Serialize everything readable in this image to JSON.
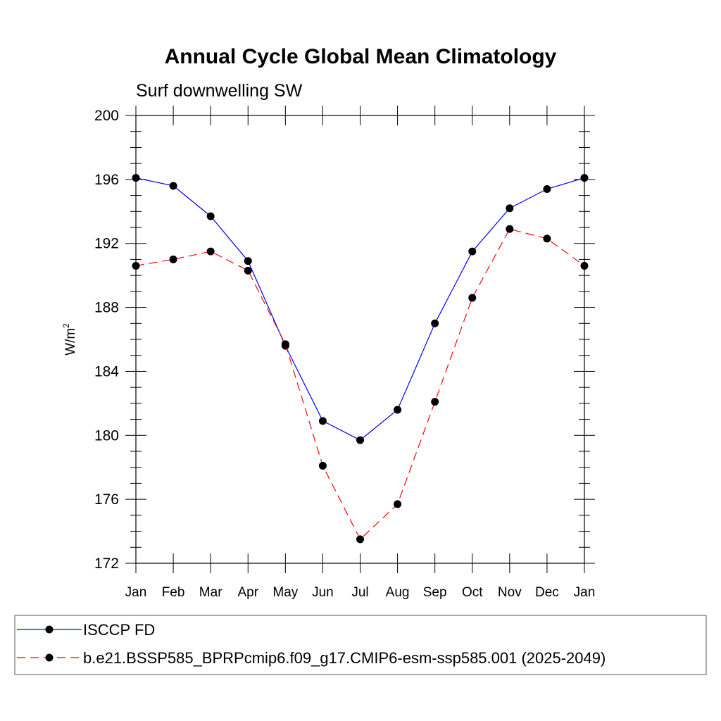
{
  "chart_data": {
    "type": "line",
    "title": "Annual Cycle Global Mean Climatology",
    "subtitle": "Surf downwelling SW",
    "ylabel": "W/m",
    "ylabel_superscript": "2",
    "ylim": [
      172,
      200
    ],
    "yticks": [
      172,
      176,
      180,
      184,
      188,
      192,
      196,
      200
    ],
    "categories": [
      "Jan",
      "Feb",
      "Mar",
      "Apr",
      "May",
      "Jun",
      "Jul",
      "Aug",
      "Sep",
      "Oct",
      "Nov",
      "Dec",
      "Jan"
    ],
    "series": [
      {
        "name": "ISCCP FD",
        "color": "#0000ff",
        "dash": "solid",
        "values": [
          196.1,
          195.6,
          193.7,
          190.9,
          185.6,
          180.9,
          179.7,
          181.6,
          187.0,
          191.5,
          194.2,
          195.4,
          196.1
        ]
      },
      {
        "name": "b.e21.BSSP585_BPRPcmip6.f09_g17.CMIP6-esm-ssp585.001 (2025-2049)",
        "color": "#ff0000",
        "dash": "dashed",
        "values": [
          190.6,
          191.0,
          191.5,
          190.3,
          185.7,
          178.1,
          173.5,
          175.7,
          182.1,
          188.6,
          192.9,
          192.3,
          190.6
        ]
      }
    ],
    "grid": false,
    "legend_position": "bottom"
  }
}
